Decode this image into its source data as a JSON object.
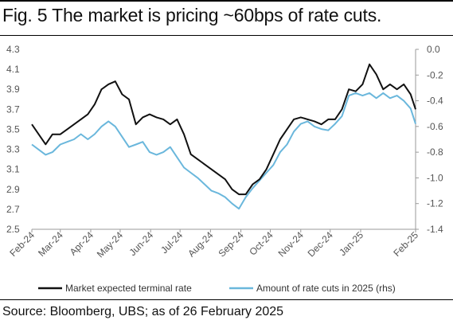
{
  "figure": {
    "title": "Fig. 5 The market is pricing ~60bps of rate cuts.",
    "source": "Source: Bloomberg, UBS; as of 26 February 2025"
  },
  "chart_data": {
    "type": "line",
    "title": "Fig. 5 The market is pricing ~60bps of rate cuts.",
    "x_tick_labels": [
      "Feb-24",
      "Mar-24",
      "Apr-24",
      "May-24",
      "Jun-24",
      "Jul-24",
      "Aug-24",
      "Sep-24",
      "Oct-24",
      "Nov-24",
      "Dec-24",
      "Jan-25",
      "Feb-25"
    ],
    "y_left": {
      "lim": [
        2.5,
        4.3
      ],
      "ticks": [
        "2.5",
        "2.7",
        "2.9",
        "3.1",
        "3.3",
        "3.5",
        "3.7",
        "3.9",
        "4.1",
        "4.3"
      ]
    },
    "y_right": {
      "lim": [
        -1.4,
        0.0
      ],
      "ticks": [
        "0.0",
        "-0.2",
        "-0.4",
        "-0.6",
        "-0.8",
        "-1.0",
        "-1.2",
        "-1.4"
      ]
    },
    "grid": false,
    "legend": "bottom",
    "series": [
      {
        "name": "Market expected terminal rate",
        "axis": "left",
        "color": "#111111",
        "points": [
          [
            "2024-02-01",
            3.55
          ],
          [
            "2024-02-08",
            3.45
          ],
          [
            "2024-02-15",
            3.35
          ],
          [
            "2024-02-22",
            3.45
          ],
          [
            "2024-03-01",
            3.45
          ],
          [
            "2024-03-08",
            3.5
          ],
          [
            "2024-03-15",
            3.55
          ],
          [
            "2024-03-22",
            3.6
          ],
          [
            "2024-03-29",
            3.65
          ],
          [
            "2024-04-05",
            3.75
          ],
          [
            "2024-04-12",
            3.9
          ],
          [
            "2024-04-19",
            3.95
          ],
          [
            "2024-04-26",
            3.98
          ],
          [
            "2024-05-03",
            3.85
          ],
          [
            "2024-05-10",
            3.8
          ],
          [
            "2024-05-17",
            3.55
          ],
          [
            "2024-05-24",
            3.62
          ],
          [
            "2024-05-31",
            3.65
          ],
          [
            "2024-06-07",
            3.62
          ],
          [
            "2024-06-14",
            3.6
          ],
          [
            "2024-06-21",
            3.55
          ],
          [
            "2024-06-28",
            3.6
          ],
          [
            "2024-07-05",
            3.45
          ],
          [
            "2024-07-12",
            3.25
          ],
          [
            "2024-07-19",
            3.2
          ],
          [
            "2024-07-26",
            3.15
          ],
          [
            "2024-08-02",
            3.1
          ],
          [
            "2024-08-09",
            3.05
          ],
          [
            "2024-08-16",
            3.0
          ],
          [
            "2024-08-23",
            2.9
          ],
          [
            "2024-08-30",
            2.85
          ],
          [
            "2024-09-06",
            2.85
          ],
          [
            "2024-09-13",
            2.95
          ],
          [
            "2024-09-20",
            3.0
          ],
          [
            "2024-09-27",
            3.1
          ],
          [
            "2024-10-04",
            3.25
          ],
          [
            "2024-10-11",
            3.4
          ],
          [
            "2024-10-18",
            3.5
          ],
          [
            "2024-10-25",
            3.6
          ],
          [
            "2024-11-01",
            3.62
          ],
          [
            "2024-11-08",
            3.6
          ],
          [
            "2024-11-15",
            3.58
          ],
          [
            "2024-11-22",
            3.55
          ],
          [
            "2024-11-29",
            3.6
          ],
          [
            "2024-12-06",
            3.6
          ],
          [
            "2024-12-13",
            3.7
          ],
          [
            "2024-12-20",
            3.9
          ],
          [
            "2024-12-27",
            3.88
          ],
          [
            "2025-01-03",
            3.95
          ],
          [
            "2025-01-10",
            4.15
          ],
          [
            "2025-01-17",
            4.05
          ],
          [
            "2025-01-24",
            3.9
          ],
          [
            "2025-01-31",
            3.95
          ],
          [
            "2025-02-07",
            3.9
          ],
          [
            "2025-02-14",
            3.95
          ],
          [
            "2025-02-21",
            3.85
          ],
          [
            "2025-02-26",
            3.7
          ]
        ]
      },
      {
        "name": "Amount of rate cuts in 2025 (rhs)",
        "axis": "right",
        "color": "#6ab7dc",
        "points": [
          [
            "2024-02-01",
            -0.74
          ],
          [
            "2024-02-08",
            -0.78
          ],
          [
            "2024-02-15",
            -0.82
          ],
          [
            "2024-02-22",
            -0.8
          ],
          [
            "2024-03-01",
            -0.74
          ],
          [
            "2024-03-08",
            -0.72
          ],
          [
            "2024-03-15",
            -0.7
          ],
          [
            "2024-03-22",
            -0.66
          ],
          [
            "2024-03-29",
            -0.7
          ],
          [
            "2024-04-05",
            -0.66
          ],
          [
            "2024-04-12",
            -0.6
          ],
          [
            "2024-04-19",
            -0.56
          ],
          [
            "2024-04-26",
            -0.6
          ],
          [
            "2024-05-03",
            -0.68
          ],
          [
            "2024-05-10",
            -0.76
          ],
          [
            "2024-05-17",
            -0.74
          ],
          [
            "2024-05-24",
            -0.72
          ],
          [
            "2024-05-31",
            -0.8
          ],
          [
            "2024-06-07",
            -0.82
          ],
          [
            "2024-06-14",
            -0.8
          ],
          [
            "2024-06-21",
            -0.76
          ],
          [
            "2024-06-28",
            -0.84
          ],
          [
            "2024-07-05",
            -0.92
          ],
          [
            "2024-07-12",
            -0.96
          ],
          [
            "2024-07-19",
            -1.0
          ],
          [
            "2024-07-26",
            -1.05
          ],
          [
            "2024-08-02",
            -1.1
          ],
          [
            "2024-08-09",
            -1.12
          ],
          [
            "2024-08-16",
            -1.15
          ],
          [
            "2024-08-23",
            -1.2
          ],
          [
            "2024-08-30",
            -1.24
          ],
          [
            "2024-09-06",
            -1.15
          ],
          [
            "2024-09-13",
            -1.08
          ],
          [
            "2024-09-20",
            -1.02
          ],
          [
            "2024-09-27",
            -0.96
          ],
          [
            "2024-10-04",
            -0.9
          ],
          [
            "2024-10-11",
            -0.8
          ],
          [
            "2024-10-18",
            -0.74
          ],
          [
            "2024-10-25",
            -0.64
          ],
          [
            "2024-11-01",
            -0.58
          ],
          [
            "2024-11-08",
            -0.56
          ],
          [
            "2024-11-15",
            -0.6
          ],
          [
            "2024-11-22",
            -0.62
          ],
          [
            "2024-11-29",
            -0.63
          ],
          [
            "2024-12-06",
            -0.58
          ],
          [
            "2024-12-13",
            -0.52
          ],
          [
            "2024-12-20",
            -0.36
          ],
          [
            "2024-12-27",
            -0.34
          ],
          [
            "2025-01-03",
            -0.36
          ],
          [
            "2025-01-10",
            -0.34
          ],
          [
            "2025-01-17",
            -0.38
          ],
          [
            "2025-01-24",
            -0.34
          ],
          [
            "2025-01-31",
            -0.38
          ],
          [
            "2025-02-07",
            -0.36
          ],
          [
            "2025-02-14",
            -0.4
          ],
          [
            "2025-02-21",
            -0.46
          ],
          [
            "2025-02-26",
            -0.58
          ]
        ]
      }
    ]
  }
}
